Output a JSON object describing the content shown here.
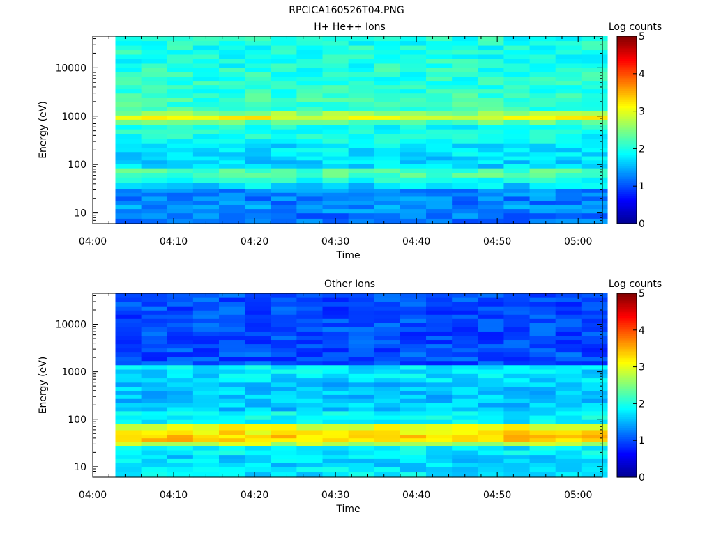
{
  "figure": {
    "title": "RPCICA160526T04.PNG"
  },
  "palette": [
    "#00008f",
    "#0000ff",
    "#007fff",
    "#00ffff",
    "#7fff7f",
    "#ffff00",
    "#ff7f00",
    "#ff0000",
    "#7f0000"
  ],
  "chart_data": [
    {
      "type": "heatmap",
      "title": "H+ He++ Ions",
      "xlabel": "Time",
      "ylabel": "Energy (eV)",
      "y_scale": "log",
      "xlim": [
        "04:00",
        "05:03"
      ],
      "ylim": [
        6,
        45000
      ],
      "x_ticks": [
        "04:00",
        "04:10",
        "04:20",
        "04:30",
        "04:40",
        "04:50",
        "05:00"
      ],
      "y_ticks": [
        {
          "value": 10,
          "label": "10"
        },
        {
          "value": 100,
          "label": "100"
        },
        {
          "value": 1000,
          "label": "1000"
        },
        {
          "value": 10000,
          "label": "10000"
        }
      ],
      "time_bins": [
        "04:02:48",
        "04:06:00",
        "04:09:12",
        "04:12:24",
        "04:15:36",
        "04:18:48",
        "04:22:00",
        "04:25:12",
        "04:28:24",
        "04:31:36",
        "04:34:48",
        "04:38:00",
        "04:41:12",
        "04:44:24",
        "04:47:36",
        "04:50:48",
        "04:54:00",
        "04:57:12",
        "05:00:24"
      ],
      "energy_bands": [
        {
          "from": 6,
          "to": 10,
          "log_counts": 1.2
        },
        {
          "from": 10,
          "to": 15,
          "log_counts": 1.35
        },
        {
          "from": 15,
          "to": 22,
          "log_counts": 1.25
        },
        {
          "from": 22,
          "to": 32,
          "log_counts": 1.3
        },
        {
          "from": 32,
          "to": 42,
          "log_counts": 1.7
        },
        {
          "from": 42,
          "to": 55,
          "log_counts": 2.0
        },
        {
          "from": 55,
          "to": 85,
          "log_counts": 2.25
        },
        {
          "from": 85,
          "to": 150,
          "log_counts": 1.7
        },
        {
          "from": 150,
          "to": 280,
          "log_counts": 1.75
        },
        {
          "from": 280,
          "to": 680,
          "log_counts": 1.95
        },
        {
          "from": 680,
          "to": 860,
          "log_counts": 2.3
        },
        {
          "from": 860,
          "to": 1050,
          "log_counts": 3.05
        },
        {
          "from": 1050,
          "to": 1300,
          "log_counts": 2.6
        },
        {
          "from": 1300,
          "to": 3000,
          "log_counts": 2.15
        },
        {
          "from": 3000,
          "to": 10000,
          "log_counts": 2.05
        },
        {
          "from": 10000,
          "to": 45000,
          "log_counts": 2.0
        }
      ],
      "colorbar": {
        "label": "Log counts",
        "min": 0,
        "max": 5,
        "ticks": [
          "0",
          "1",
          "2",
          "3",
          "4",
          "5"
        ]
      },
      "grid": false
    },
    {
      "type": "heatmap",
      "title": "Other Ions",
      "xlabel": "Time",
      "ylabel": "Energy (eV)",
      "y_scale": "log",
      "xlim": [
        "04:00",
        "05:03"
      ],
      "ylim": [
        6,
        45000
      ],
      "x_ticks": [
        "04:00",
        "04:10",
        "04:20",
        "04:30",
        "04:40",
        "04:50",
        "05:00"
      ],
      "y_ticks": [
        {
          "value": 10,
          "label": "10"
        },
        {
          "value": 100,
          "label": "100"
        },
        {
          "value": 1000,
          "label": "1000"
        },
        {
          "value": 10000,
          "label": "10000"
        }
      ],
      "time_bins": [
        "04:02:48",
        "04:06:00",
        "04:09:12",
        "04:12:24",
        "04:15:36",
        "04:18:48",
        "04:22:00",
        "04:25:12",
        "04:28:24",
        "04:31:36",
        "04:34:48",
        "04:38:00",
        "04:41:12",
        "04:44:24",
        "04:47:36",
        "04:50:48",
        "04:54:00",
        "04:57:12",
        "05:00:24"
      ],
      "energy_bands": [
        {
          "from": 6,
          "to": 10,
          "log_counts": 1.75
        },
        {
          "from": 10,
          "to": 18,
          "log_counts": 1.7
        },
        {
          "from": 18,
          "to": 28,
          "log_counts": 1.8
        },
        {
          "from": 28,
          "to": 34,
          "log_counts": 2.8
        },
        {
          "from": 34,
          "to": 48,
          "log_counts": 3.35
        },
        {
          "from": 48,
          "to": 60,
          "log_counts": 3.2
        },
        {
          "from": 60,
          "to": 80,
          "log_counts": 3.05
        },
        {
          "from": 80,
          "to": 150,
          "log_counts": 1.85
        },
        {
          "from": 150,
          "to": 600,
          "log_counts": 1.6
        },
        {
          "from": 600,
          "to": 1400,
          "log_counts": 1.75
        },
        {
          "from": 1400,
          "to": 45000,
          "log_counts": 1.0
        }
      ],
      "colorbar": {
        "label": "Log counts",
        "min": 0,
        "max": 5,
        "ticks": [
          "0",
          "1",
          "2",
          "3",
          "4",
          "5"
        ]
      },
      "grid": false
    }
  ]
}
